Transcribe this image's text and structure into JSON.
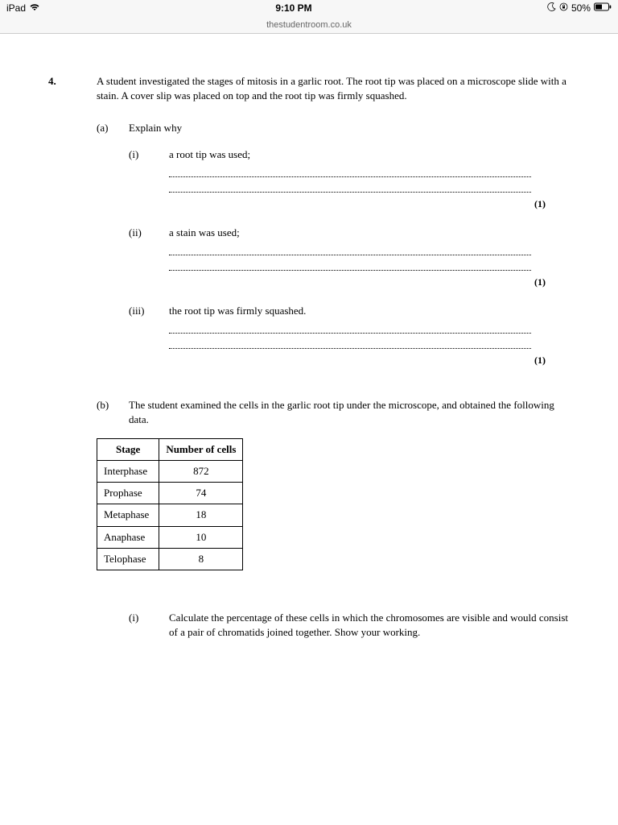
{
  "status": {
    "device": "iPad",
    "time": "9:10 PM",
    "battery_pct": "50%"
  },
  "nav": {
    "url": "thestudentroom.co.uk"
  },
  "question": {
    "number": "4.",
    "intro": "A student investigated the stages of mitosis in a garlic root. The root tip was placed on a microscope slide with a stain. A cover slip was placed on top and the root tip was firmly squashed.",
    "part_a": {
      "label": "(a)",
      "stem": "Explain why",
      "i": {
        "label": "(i)",
        "text": "a root tip was used;",
        "marks": "(1)"
      },
      "ii": {
        "label": "(ii)",
        "text": "a stain was used;",
        "marks": "(1)"
      },
      "iii": {
        "label": "(iii)",
        "text": "the root tip was firmly squashed.",
        "marks": "(1)"
      }
    },
    "part_b": {
      "label": "(b)",
      "stem": "The student examined the cells in the garlic root tip under the microscope, and obtained the following data.",
      "table": {
        "columns": [
          "Stage",
          "Number of cells"
        ],
        "rows": [
          [
            "Interphase",
            "872"
          ],
          [
            "Prophase",
            "74"
          ],
          [
            "Metaphase",
            "18"
          ],
          [
            "Anaphase",
            "10"
          ],
          [
            "Telophase",
            "8"
          ]
        ]
      },
      "i": {
        "label": "(i)",
        "text": "Calculate the percentage of these cells in which the chromosomes are visible and would consist of a pair of chromatids joined together. Show your working."
      }
    }
  }
}
